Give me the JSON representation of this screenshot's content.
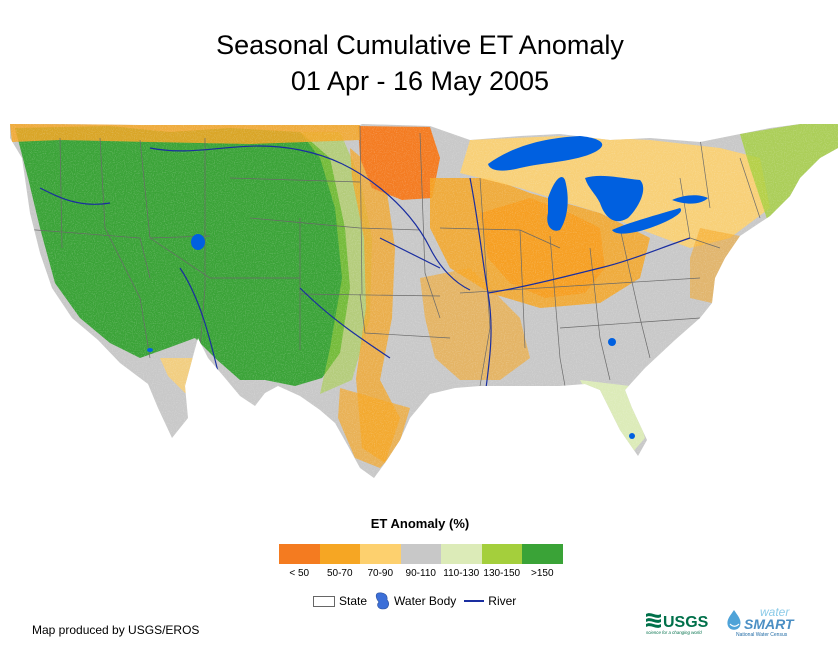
{
  "title_line1": "Seasonal Cumulative ET Anomaly",
  "title_line2": "01 Apr - 16 May 2005",
  "legend": {
    "title": "ET Anomaly (%)",
    "classes": [
      {
        "label": "< 50",
        "color": "#f47b20"
      },
      {
        "label": "50-70",
        "color": "#f6a623"
      },
      {
        "label": "70-90",
        "color": "#fdd06e"
      },
      {
        "label": "90-110",
        "color": "#c8c8c8"
      },
      {
        "label": "110-130",
        "color": "#dcebb8"
      },
      {
        "label": "130-150",
        "color": "#a4cf3c"
      },
      {
        "label": ">150",
        "color": "#3aa337"
      }
    ],
    "symbols": {
      "state": "State",
      "water": "Water Body",
      "river": "River"
    }
  },
  "credit": "Map produced by USGS/EROS",
  "logos": {
    "usgs": "USGS",
    "usgs_tagline": "science for a changing world",
    "water": "water",
    "smart": "SMART",
    "ws_tagline": "National Water Census"
  }
}
